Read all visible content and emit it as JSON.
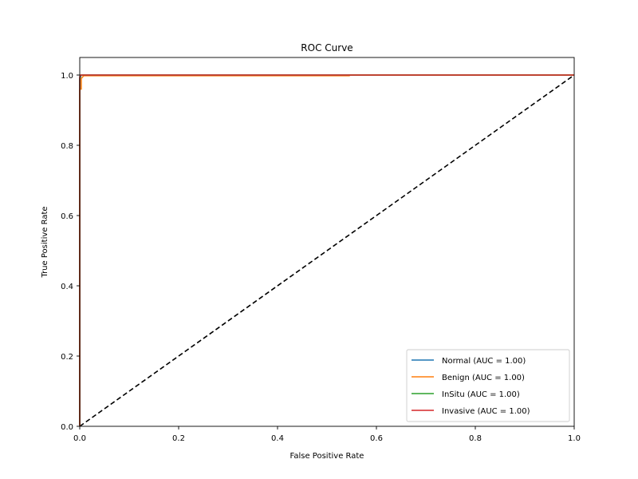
{
  "chart_data": {
    "type": "line",
    "title": "ROC Curve",
    "xlabel": "False Positive Rate",
    "ylabel": "True Positive Rate",
    "xlim": [
      0.0,
      1.0
    ],
    "ylim": [
      0.0,
      1.05
    ],
    "x_ticks": [
      "0.0",
      "0.2",
      "0.4",
      "0.6",
      "0.8",
      "1.0"
    ],
    "y_ticks": [
      "0.0",
      "0.2",
      "0.4",
      "0.6",
      "0.8",
      "1.0"
    ],
    "x_tick_values": [
      0.0,
      0.2,
      0.4,
      0.6,
      0.8,
      1.0
    ],
    "y_tick_values": [
      0.0,
      0.2,
      0.4,
      0.6,
      0.8,
      1.0
    ],
    "grid": false,
    "legend_position": "lower-right",
    "series": [
      {
        "name": "Normal (AUC = 1.00)",
        "color": "#1f77b4",
        "x": [
          0.0,
          0.0,
          0.0,
          0.002,
          0.004,
          1.0
        ],
        "y": [
          0.0,
          0.75,
          0.985,
          0.997,
          1.0,
          1.0
        ]
      },
      {
        "name": "Benign (AUC = 1.00)",
        "color": "#ff7f0e",
        "x": [
          0.0,
          0.0,
          0.003,
          0.003,
          0.008,
          0.545,
          0.545,
          1.0
        ],
        "y": [
          0.0,
          0.96,
          0.96,
          0.99,
          0.998,
          0.998,
          1.0,
          1.0
        ]
      },
      {
        "name": "InSitu (AUC = 1.00)",
        "color": "#2ca02c",
        "x": [
          0.0,
          0.0,
          0.002,
          1.0
        ],
        "y": [
          0.0,
          0.99,
          1.0,
          1.0
        ]
      },
      {
        "name": "Invasive (AUC = 1.00)",
        "color": "#d62728",
        "x": [
          0.0,
          0.0,
          0.002,
          1.0
        ],
        "y": [
          0.0,
          0.995,
          1.0,
          1.0
        ]
      }
    ],
    "reference_line": {
      "color": "#000000",
      "x": [
        0.0,
        1.0
      ],
      "y": [
        0.0,
        1.0
      ]
    }
  }
}
